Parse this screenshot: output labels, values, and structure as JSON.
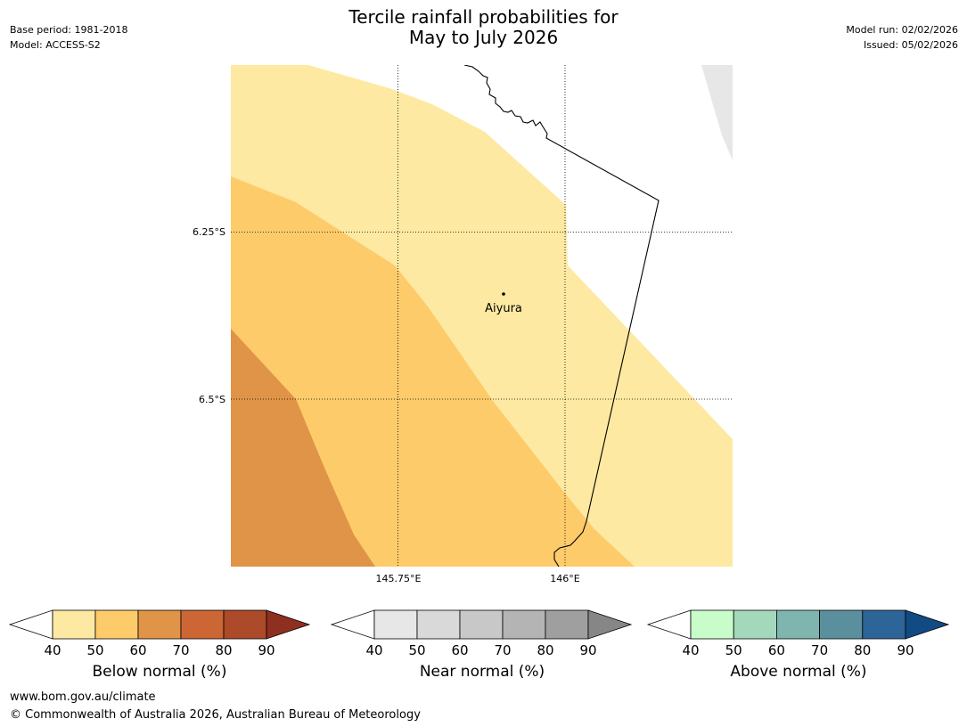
{
  "header": {
    "base_period": "Base period: 1981-2018",
    "model": "Model: ACCESS-S2",
    "title_line1": "Tercile rainfall probabilities for",
    "title_line2": "May to July 2026",
    "model_run": "Model run: 02/02/2026",
    "issued": "Issued: 05/02/2026"
  },
  "map": {
    "lat_labels": [
      "6.25°S",
      "6.5°S"
    ],
    "lon_labels": [
      "145.75°E",
      "146°E"
    ],
    "place": {
      "name": "Aiyura",
      "lon": 145.9,
      "lat": -6.33
    },
    "extent": {
      "lon_min": 145.5,
      "lon_max": 146.25,
      "lat_min": -6.75,
      "lat_max": -6.0
    },
    "fill_colors": {
      "below_40_50": "#fde9a1",
      "below_50_60": "#fdcb6a",
      "below_60_70": "#e09447",
      "near_40_50": "#e7e7e7",
      "no_dominant": "#ffffff"
    }
  },
  "colorbars": [
    {
      "name": "below",
      "label": "Below normal (%)",
      "ticks": [
        "40",
        "50",
        "60",
        "70",
        "80",
        "90"
      ],
      "colors": [
        "#fde9a1",
        "#fdcb6a",
        "#e09447",
        "#cc6634",
        "#ac4a29",
        "#8e2f1f"
      ]
    },
    {
      "name": "near",
      "label": "Near normal (%)",
      "ticks": [
        "40",
        "50",
        "60",
        "70",
        "80",
        "90"
      ],
      "colors": [
        "#e7e7e7",
        "#d9d9d9",
        "#c8c8c8",
        "#b4b4b4",
        "#9f9f9f",
        "#868686"
      ]
    },
    {
      "name": "above",
      "label": "Above normal (%)",
      "ticks": [
        "40",
        "50",
        "60",
        "70",
        "80",
        "90"
      ],
      "colors": [
        "#c8fdca",
        "#a3d9ba",
        "#7eb5ae",
        "#5a8f9e",
        "#2e6598",
        "#124a84"
      ]
    }
  ],
  "footer": {
    "url": "www.bom.gov.au/climate",
    "copyright": "© Commonwealth of Australia 2026, Australian Bureau of Meteorology"
  }
}
